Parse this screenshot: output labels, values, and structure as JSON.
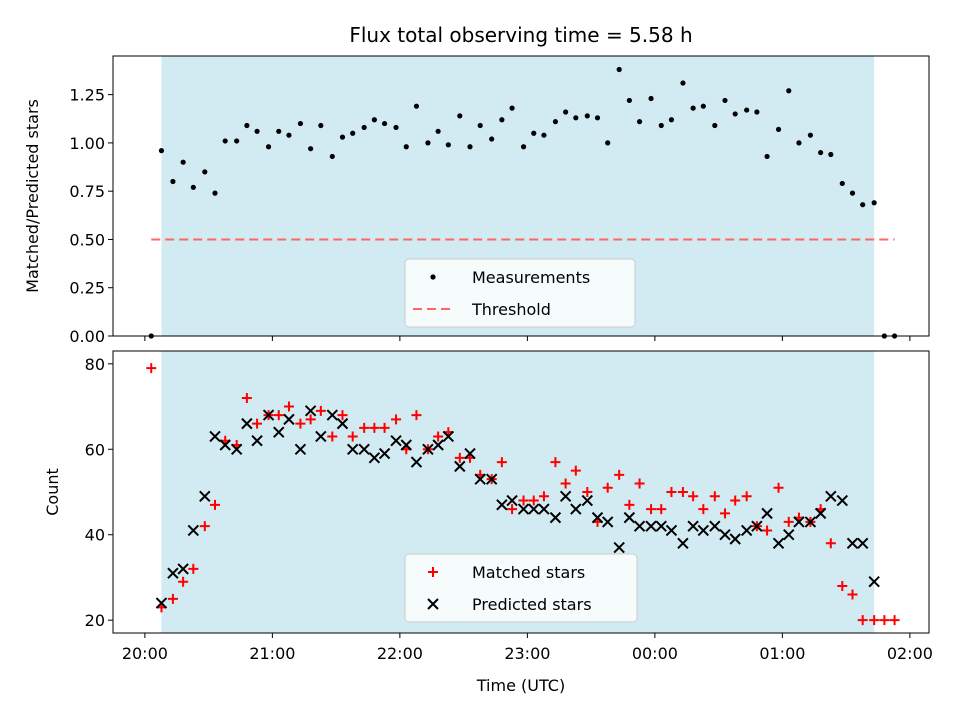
{
  "chart_data": [
    {
      "type": "scatter",
      "title": "Flux total observing time = 5.58 h",
      "xlabel": "",
      "ylabel": "Matched/Predicted stars",
      "xlim": [
        -0.25,
        6.15
      ],
      "ylim": [
        0,
        1.45
      ],
      "yticks": [
        0.0,
        0.25,
        0.5,
        0.75,
        1.0,
        1.25
      ],
      "ytick_labels": [
        "0.00",
        "0.25",
        "0.50",
        "0.75",
        "1.00",
        "1.25"
      ],
      "shaded_span": [
        0.13,
        5.72
      ],
      "shade_color": "#add8e6",
      "legend_position": "lower center",
      "threshold": {
        "name": "Threshold",
        "y": 0.5,
        "x": [
          0.05,
          5.88
        ],
        "color": "#ff6666",
        "style": "dashed"
      },
      "series": [
        {
          "name": "Measurements",
          "color": "#000000",
          "marker": "dot",
          "x": [
            0.05,
            0.13,
            0.22,
            0.3,
            0.38,
            0.47,
            0.55,
            0.63,
            0.72,
            0.8,
            0.88,
            0.97,
            1.05,
            1.13,
            1.22,
            1.3,
            1.38,
            1.47,
            1.55,
            1.63,
            1.72,
            1.8,
            1.88,
            1.97,
            2.05,
            2.13,
            2.22,
            2.3,
            2.38,
            2.47,
            2.55,
            2.63,
            2.72,
            2.8,
            2.88,
            2.97,
            3.05,
            3.13,
            3.22,
            3.3,
            3.38,
            3.47,
            3.55,
            3.63,
            3.72,
            3.8,
            3.88,
            3.97,
            4.05,
            4.13,
            4.22,
            4.3,
            4.38,
            4.47,
            4.55,
            4.63,
            4.72,
            4.8,
            4.88,
            4.97,
            5.05,
            5.13,
            5.22,
            5.3,
            5.38,
            5.47,
            5.55,
            5.63,
            5.72,
            5.8,
            5.88
          ],
          "y": [
            0.0,
            0.96,
            0.8,
            0.9,
            0.77,
            0.85,
            0.74,
            1.01,
            1.01,
            1.09,
            1.06,
            0.98,
            1.06,
            1.04,
            1.1,
            0.97,
            1.09,
            0.93,
            1.03,
            1.05,
            1.08,
            1.12,
            1.1,
            1.08,
            0.98,
            1.19,
            1.0,
            1.06,
            0.99,
            1.14,
            0.98,
            1.09,
            1.02,
            1.12,
            1.18,
            0.98,
            1.05,
            1.04,
            1.11,
            1.16,
            1.13,
            1.14,
            1.13,
            1.0,
            1.38,
            1.22,
            1.11,
            1.23,
            1.09,
            1.12,
            1.31,
            1.18,
            1.19,
            1.09,
            1.22,
            1.15,
            1.17,
            1.16,
            0.93,
            1.07,
            1.27,
            1.0,
            1.04,
            0.95,
            0.94,
            0.79,
            0.74,
            0.68,
            0.69,
            0.0,
            0.0
          ]
        }
      ]
    },
    {
      "type": "scatter",
      "title": "",
      "xlabel": "Time (UTC)",
      "ylabel": "Count",
      "xlim": [
        -0.25,
        6.15
      ],
      "ylim": [
        17,
        83
      ],
      "yticks": [
        20,
        40,
        60,
        80
      ],
      "ytick_labels": [
        "20",
        "40",
        "60",
        "80"
      ],
      "xticks": [
        0,
        1,
        2,
        3,
        4,
        5,
        6
      ],
      "xtick_labels": [
        "20:00",
        "21:00",
        "22:00",
        "23:00",
        "00:00",
        "01:00",
        "02:00"
      ],
      "shaded_span": [
        0.13,
        5.72
      ],
      "shade_color": "#add8e6",
      "legend_position": "lower center",
      "series": [
        {
          "name": "Matched stars",
          "color": "#ff0000",
          "marker": "plus",
          "x": [
            0.05,
            0.13,
            0.22,
            0.3,
            0.38,
            0.47,
            0.55,
            0.63,
            0.72,
            0.8,
            0.88,
            0.97,
            1.05,
            1.13,
            1.22,
            1.3,
            1.38,
            1.47,
            1.55,
            1.63,
            1.72,
            1.8,
            1.88,
            1.97,
            2.05,
            2.13,
            2.22,
            2.3,
            2.38,
            2.47,
            2.55,
            2.63,
            2.72,
            2.8,
            2.88,
            2.97,
            3.05,
            3.13,
            3.22,
            3.3,
            3.38,
            3.47,
            3.55,
            3.63,
            3.72,
            3.8,
            3.88,
            3.97,
            4.05,
            4.13,
            4.22,
            4.3,
            4.38,
            4.47,
            4.55,
            4.63,
            4.72,
            4.8,
            4.88,
            4.97,
            5.05,
            5.13,
            5.22,
            5.3,
            5.38,
            5.47,
            5.55,
            5.63,
            5.72,
            5.8,
            5.88
          ],
          "y": [
            79,
            23,
            25,
            29,
            32,
            42,
            47,
            62,
            61,
            72,
            66,
            68,
            68,
            70,
            66,
            67,
            69,
            63,
            68,
            63,
            65,
            65,
            65,
            67,
            60,
            68,
            60,
            63,
            64,
            58,
            58,
            54,
            53,
            57,
            46,
            48,
            48,
            49,
            57,
            52,
            55,
            50,
            43,
            51,
            54,
            47,
            52,
            46,
            46,
            50,
            50,
            49,
            46,
            49,
            45,
            48,
            49,
            42,
            41,
            51,
            43,
            44,
            43,
            46,
            38,
            28,
            26,
            20,
            20,
            20,
            20
          ]
        },
        {
          "name": "Predicted stars",
          "color": "#000000",
          "marker": "x",
          "x": [
            0.13,
            0.22,
            0.3,
            0.38,
            0.47,
            0.55,
            0.63,
            0.72,
            0.8,
            0.88,
            0.97,
            1.05,
            1.13,
            1.22,
            1.3,
            1.38,
            1.47,
            1.55,
            1.63,
            1.72,
            1.8,
            1.88,
            1.97,
            2.05,
            2.13,
            2.22,
            2.3,
            2.38,
            2.47,
            2.55,
            2.63,
            2.72,
            2.8,
            2.88,
            2.97,
            3.05,
            3.13,
            3.22,
            3.3,
            3.38,
            3.47,
            3.55,
            3.63,
            3.72,
            3.8,
            3.88,
            3.97,
            4.05,
            4.13,
            4.22,
            4.3,
            4.38,
            4.47,
            4.55,
            4.63,
            4.72,
            4.8,
            4.88,
            4.97,
            5.05,
            5.13,
            5.22,
            5.3,
            5.38,
            5.47,
            5.55,
            5.63,
            5.72
          ],
          "y": [
            24,
            31,
            32,
            41,
            49,
            63,
            61,
            60,
            66,
            62,
            68,
            64,
            67,
            60,
            69,
            63,
            68,
            66,
            60,
            60,
            58,
            59,
            62,
            61,
            57,
            60,
            61,
            63,
            56,
            59,
            53,
            53,
            47,
            48,
            46,
            46,
            46,
            44,
            49,
            46,
            48,
            44,
            43,
            37,
            44,
            42,
            42,
            42,
            41,
            38,
            42,
            41,
            42,
            40,
            39,
            41,
            42,
            45,
            38,
            40,
            43,
            43,
            45,
            49,
            48,
            38,
            38,
            29
          ]
        }
      ]
    }
  ]
}
